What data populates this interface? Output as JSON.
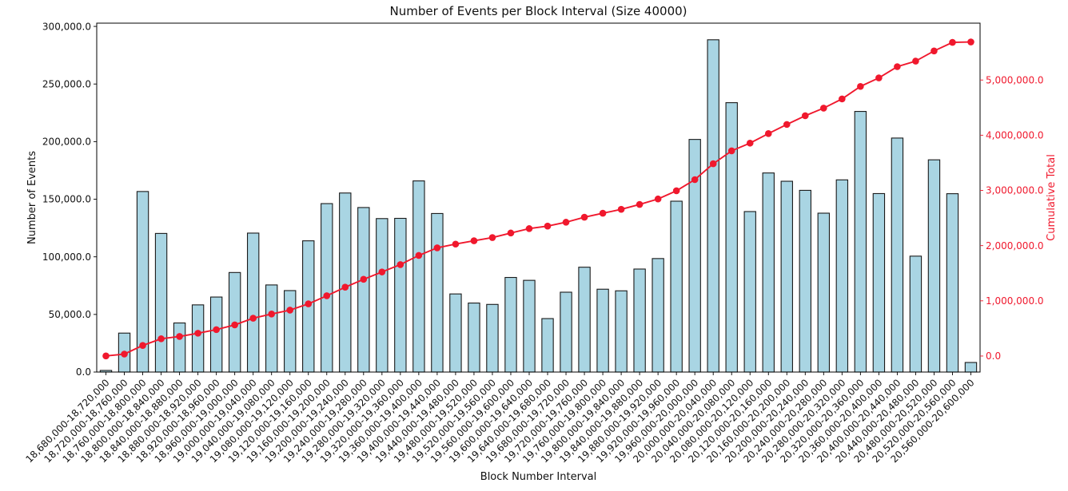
{
  "chart_data": {
    "type": "bar+line",
    "title": "Number of Events per Block Interval (Size 40000)",
    "xlabel": "Block Number Interval",
    "ylabel": "Number of Events",
    "ylabel_right": "Cumulative Total",
    "grid": false,
    "legend": "none",
    "categories": [
      "18,680,000-18,720,000",
      "18,720,000-18,760,000",
      "18,760,000-18,800,000",
      "18,800,000-18,840,000",
      "18,840,000-18,880,000",
      "18,880,000-18,920,000",
      "18,920,000-18,960,000",
      "18,960,000-19,000,000",
      "19,000,000-19,040,000",
      "19,040,000-19,080,000",
      "19,080,000-19,120,000",
      "19,120,000-19,160,000",
      "19,160,000-19,200,000",
      "19,200,000-19,240,000",
      "19,240,000-19,280,000",
      "19,280,000-19,320,000",
      "19,320,000-19,360,000",
      "19,360,000-19,400,000",
      "19,400,000-19,440,000",
      "19,440,000-19,480,000",
      "19,480,000-19,520,000",
      "19,520,000-19,560,000",
      "19,560,000-19,600,000",
      "19,600,000-19,640,000",
      "19,640,000-19,680,000",
      "19,680,000-19,720,000",
      "19,720,000-19,760,000",
      "19,760,000-19,800,000",
      "19,800,000-19,840,000",
      "19,840,000-19,880,000",
      "19,880,000-19,920,000",
      "19,920,000-19,960,000",
      "19,960,000-20,000,000",
      "20,000,000-20,040,000",
      "20,040,000-20,080,000",
      "20,080,000-20,120,000",
      "20,120,000-20,160,000",
      "20,160,000-20,200,000",
      "20,200,000-20,240,000",
      "20,240,000-20,280,000",
      "20,280,000-20,320,000",
      "20,320,000-20,360,000",
      "20,360,000-20,400,000",
      "20,400,000-20,440,000",
      "20,440,000-20,480,000",
      "20,480,000-20,520,000",
      "20,520,000-20,560,000",
      "20,560,000-20,600,000"
    ],
    "series": [
      {
        "name": "Number of Events",
        "type": "bar",
        "axis": "left",
        "values": [
          1400,
          33800,
          156700,
          120300,
          42600,
          58300,
          65100,
          86400,
          120600,
          75600,
          70700,
          113900,
          146200,
          155400,
          142800,
          133200,
          133400,
          165900,
          137600,
          67800,
          59900,
          58700,
          82100,
          79600,
          46400,
          69300,
          91000,
          71900,
          70500,
          89400,
          98500,
          148300,
          201900,
          288400,
          233800,
          139300,
          172800,
          165600,
          157700,
          137900,
          166800,
          226200,
          154900,
          203100,
          100600,
          184200,
          154800,
          8300
        ]
      },
      {
        "name": "Cumulative Total",
        "type": "line",
        "axis": "right",
        "values": [
          1400,
          35200,
          191900,
          312200,
          354800,
          413100,
          478200,
          564600,
          685200,
          760800,
          831500,
          945400,
          1091600,
          1247000,
          1389800,
          1523000,
          1656400,
          1822300,
          1959900,
          2027700,
          2087600,
          2146300,
          2228400,
          2308000,
          2354400,
          2423700,
          2514700,
          2586600,
          2657100,
          2746500,
          2845000,
          2993300,
          3195200,
          3483600,
          3717400,
          3856700,
          4029500,
          4195100,
          4352800,
          4490700,
          4657500,
          4883700,
          5038600,
          5241700,
          5342300,
          5526500,
          5681300,
          5689600
        ]
      }
    ],
    "left_axis": {
      "lim": [
        0,
        302820
      ],
      "tick_values": [
        0,
        50000,
        100000,
        150000,
        200000,
        250000,
        300000
      ],
      "tick_labels": [
        "0.0",
        "50,000.0",
        "100,000.0",
        "150,000.0",
        "200,000.0",
        "250,000.0",
        "300,000.0"
      ]
    },
    "right_axis": {
      "lim": [
        -290000,
        6030000
      ],
      "tick_values": [
        0,
        1000000,
        2000000,
        3000000,
        4000000,
        5000000
      ],
      "tick_labels": [
        "0.0",
        "1,000,000.0",
        "2,000,000.0",
        "3,000,000.0",
        "4,000,000.0",
        "5,000,000.0"
      ]
    },
    "colors": {
      "bar_fill": "#a9d5e3",
      "bar_edge": "#1a1a1a",
      "line": "#f0182d",
      "axis": "#000000",
      "text": "#111111",
      "background": "#ffffff"
    }
  }
}
